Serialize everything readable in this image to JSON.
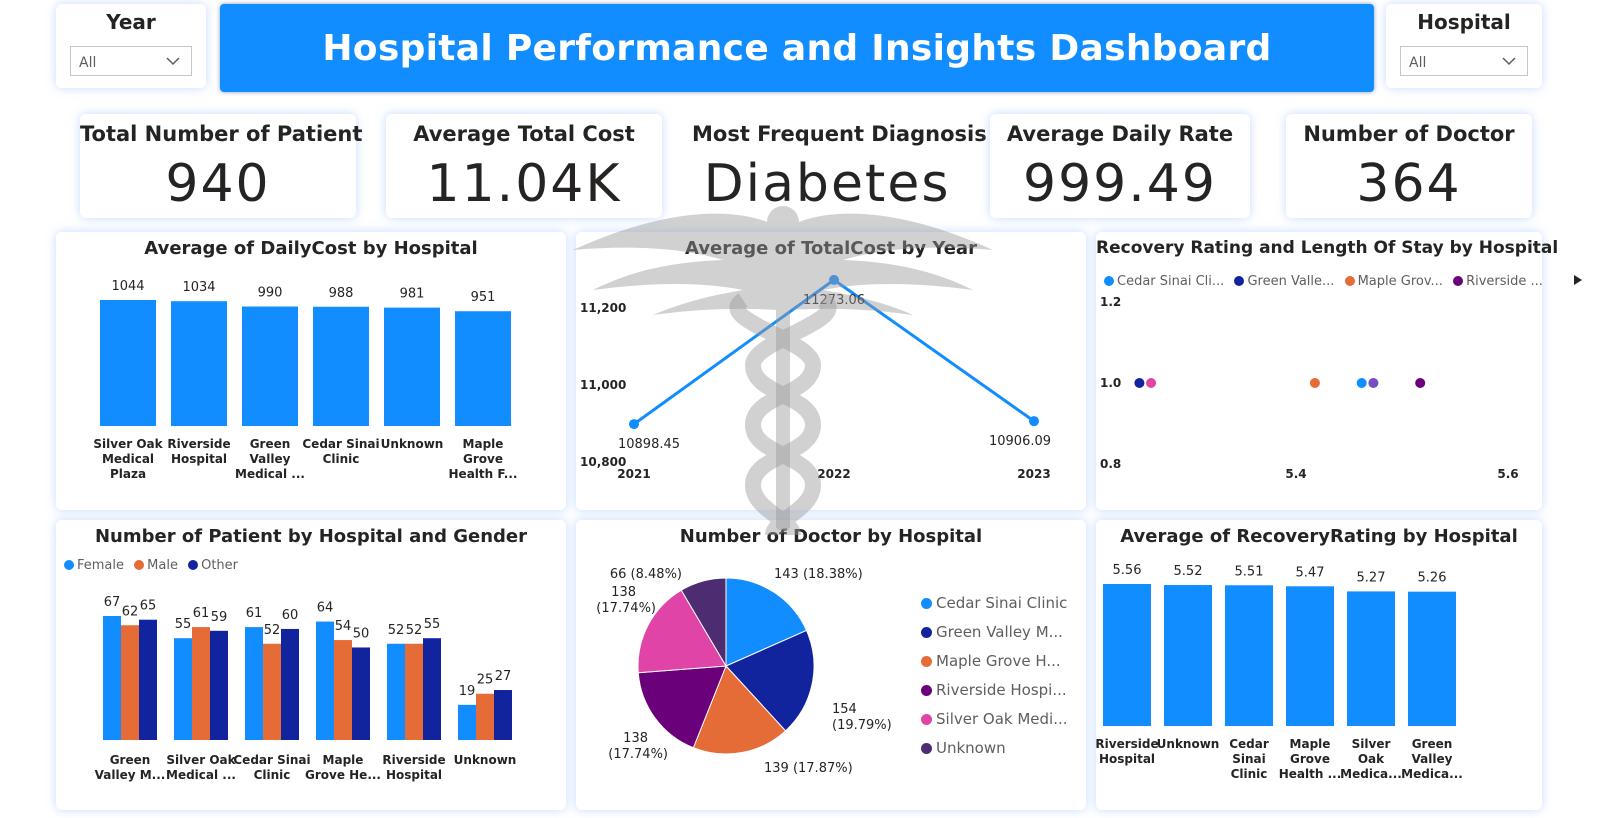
{
  "header": {
    "title": "Hospital Performance and Insights Dashboard"
  },
  "filters": {
    "year": {
      "label": "Year",
      "value": "All"
    },
    "hospital": {
      "label": "Hospital",
      "value": "All"
    }
  },
  "kpis": [
    {
      "title": "Total Number of Patient",
      "value": "940"
    },
    {
      "title": "Average Total Cost",
      "value": "11.04K"
    },
    {
      "title": "Most Frequent Diagnosis",
      "value": "Diabetes"
    },
    {
      "title": "Average Daily Rate",
      "value": "999.49"
    },
    {
      "title": "Number of Doctor",
      "value": "364"
    }
  ],
  "colors": {
    "accent": "#118dff",
    "blue": "#118dff",
    "navy": "#12239e",
    "orange": "#e66c37",
    "purple": "#6b007b",
    "pink": "#e044a7",
    "violet": "#744ec2"
  },
  "chart_data": [
    {
      "id": "daily_cost",
      "type": "bar",
      "title": "Average of DailyCost by Hospital",
      "categories": [
        [
          "Silver Oak",
          "Medical",
          "Plaza"
        ],
        [
          "Riverside",
          "Hospital"
        ],
        [
          "Green",
          "Valley",
          "Medical ..."
        ],
        [
          "Cedar Sinai",
          "Clinic"
        ],
        [
          "Unknown"
        ],
        [
          "Maple",
          "Grove",
          "Health F..."
        ]
      ],
      "values": [
        1044,
        1034,
        990,
        988,
        981,
        951
      ],
      "labels": [
        "1044",
        "1034",
        "990",
        "988",
        "981",
        "951"
      ],
      "ylim": [
        0,
        1044
      ]
    },
    {
      "id": "total_cost_year",
      "type": "line",
      "title": "Average of TotalCost by Year",
      "x": [
        "2021",
        "2022",
        "2023"
      ],
      "values": [
        10898.45,
        11273.06,
        10906.09
      ],
      "labels": [
        "10898.45",
        "11273.06",
        "10906.09"
      ],
      "yticks": [
        "11,200",
        "11,000",
        "10,800"
      ],
      "ytick_values": [
        11200,
        11000,
        10800
      ],
      "ylim": [
        10800,
        11250
      ]
    },
    {
      "id": "recovery_los",
      "type": "scatter",
      "title": "Recovery Rating and Length Of Stay by Hospital",
      "legend": [
        "Cedar Sinai Cli...",
        "Green Valle...",
        "Maple Grov...",
        "Riverside ..."
      ],
      "yticks": [
        "1.2",
        "1.0",
        "0.8"
      ],
      "xticks": [
        "5.4",
        "5.6"
      ],
      "xlim": [
        5.3,
        5.6
      ],
      "ylim": [
        0.8,
        1.2
      ],
      "points": [
        {
          "x": 5.32,
          "y": 1.0,
          "color": "#12239e"
        },
        {
          "x": 5.33,
          "y": 1.0,
          "color": "#e044a7"
        },
        {
          "x": 5.47,
          "y": 1.0,
          "color": "#e66c37"
        },
        {
          "x": 5.51,
          "y": 1.0,
          "color": "#118dff"
        },
        {
          "x": 5.52,
          "y": 1.0,
          "color": "#744ec2"
        },
        {
          "x": 5.56,
          "y": 1.0,
          "color": "#6b007b"
        }
      ]
    },
    {
      "id": "patients_gender",
      "type": "bar",
      "title": "Number of Patient by Hospital and Gender",
      "categories": [
        [
          "Green",
          "Valley M..."
        ],
        [
          "Silver Oak",
          "Medical ..."
        ],
        [
          "Cedar Sinai",
          "Clinic"
        ],
        [
          "Maple",
          "Grove He..."
        ],
        [
          "Riverside",
          "Hospital"
        ],
        [
          "Unknown"
        ]
      ],
      "series": [
        {
          "name": "Female",
          "color": "#118dff",
          "values": [
            67,
            55,
            61,
            64,
            52,
            19
          ]
        },
        {
          "name": "Male",
          "color": "#e66c37",
          "values": [
            62,
            61,
            52,
            54,
            52,
            25
          ]
        },
        {
          "name": "Other",
          "color": "#12239e",
          "values": [
            65,
            59,
            60,
            50,
            55,
            27
          ]
        }
      ],
      "ylim": [
        0,
        67
      ]
    },
    {
      "id": "doctors_hospital",
      "type": "pie",
      "title": "Number of Doctor by Hospital",
      "slices": [
        {
          "name": "Cedar Sinai Clinic",
          "legend": "Cedar Sinai Clinic",
          "value": 143,
          "label": "143 (18.38%)",
          "color": "#118dff"
        },
        {
          "name": "Green Valley Medical",
          "legend": "Green Valley M...",
          "value": 154,
          "label": "154 (19.79%)",
          "color": "#12239e"
        },
        {
          "name": "Maple Grove Health",
          "legend": "Maple Grove H...",
          "value": 139,
          "label": "139 (17.87%)",
          "color": "#e66c37"
        },
        {
          "name": "Riverside Hospital",
          "legend": "Riverside Hospi...",
          "value": 138,
          "label": "138 (17.74%)",
          "color": "#6b007b"
        },
        {
          "name": "Silver Oak Medical",
          "legend": "Silver Oak Medi...",
          "value": 138,
          "label": "138 (17.74%)",
          "color": "#e044a7"
        },
        {
          "name": "Unknown",
          "legend": "Unknown",
          "value": 66,
          "label": "66 (8.48%)",
          "color": "#4d2c72"
        }
      ]
    },
    {
      "id": "recovery_rating",
      "type": "bar",
      "title": "Average of RecoveryRating by Hospital",
      "categories": [
        [
          "Riverside",
          "Hospital"
        ],
        [
          "Unknown"
        ],
        [
          "Cedar",
          "Sinai",
          "Clinic"
        ],
        [
          "Maple",
          "Grove",
          "Health ..."
        ],
        [
          "Silver",
          "Oak",
          "Medica..."
        ],
        [
          "Green",
          "Valley",
          "Medica..."
        ]
      ],
      "values": [
        5.56,
        5.52,
        5.51,
        5.47,
        5.27,
        5.26
      ],
      "labels": [
        "5.56",
        "5.52",
        "5.51",
        "5.47",
        "5.27",
        "5.26"
      ],
      "ylim": [
        0,
        5.56
      ]
    }
  ]
}
